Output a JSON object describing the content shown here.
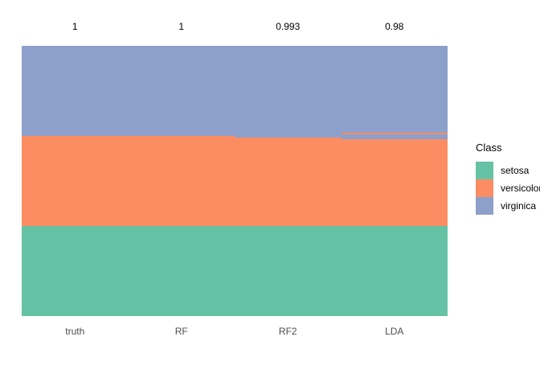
{
  "chart_data": {
    "type": "bar",
    "subtype": "100%-stacked-classification-columns",
    "title": "",
    "xlabel": "",
    "ylabel": "",
    "grid": false,
    "total_samples": 150,
    "categories": [
      "truth",
      "RF",
      "RF2",
      "LDA"
    ],
    "accuracy_labels": [
      "1",
      "1",
      "0.993",
      "0.98"
    ],
    "classes": [
      {
        "name": "setosa",
        "color": "#66C2A5"
      },
      {
        "name": "versicolor",
        "color": "#FC8D62"
      },
      {
        "name": "virginica",
        "color": "#8DA0CB"
      }
    ],
    "columns": [
      {
        "label": "truth",
        "accuracy": "1",
        "segments": [
          {
            "class": "virginica",
            "count": 50
          },
          {
            "class": "versicolor",
            "count": 50
          },
          {
            "class": "setosa",
            "count": 50
          }
        ]
      },
      {
        "label": "RF",
        "accuracy": "1",
        "segments": [
          {
            "class": "virginica",
            "count": 50
          },
          {
            "class": "versicolor",
            "count": 50
          },
          {
            "class": "setosa",
            "count": 50
          }
        ]
      },
      {
        "label": "RF2",
        "accuracy": "0.993",
        "segments": [
          {
            "class": "virginica",
            "count": 51
          },
          {
            "class": "versicolor",
            "count": 49
          },
          {
            "class": "setosa",
            "count": 50
          }
        ]
      },
      {
        "label": "LDA",
        "accuracy": "0.98",
        "segments": [
          {
            "class": "virginica",
            "count": 48
          },
          {
            "class": "versicolor",
            "count": 1
          },
          {
            "class": "virginica",
            "count": 3
          },
          {
            "class": "versicolor",
            "count": 48
          },
          {
            "class": "setosa",
            "count": 50
          }
        ]
      }
    ],
    "legend": {
      "title": "Class",
      "position": "right",
      "entries": [
        "setosa",
        "versicolor",
        "virginica"
      ]
    }
  },
  "colors": {
    "background": "#FFFFFF",
    "accuracy_text": "#000000",
    "axis_text": "#4D4D4D",
    "legend_text": "#000000"
  }
}
